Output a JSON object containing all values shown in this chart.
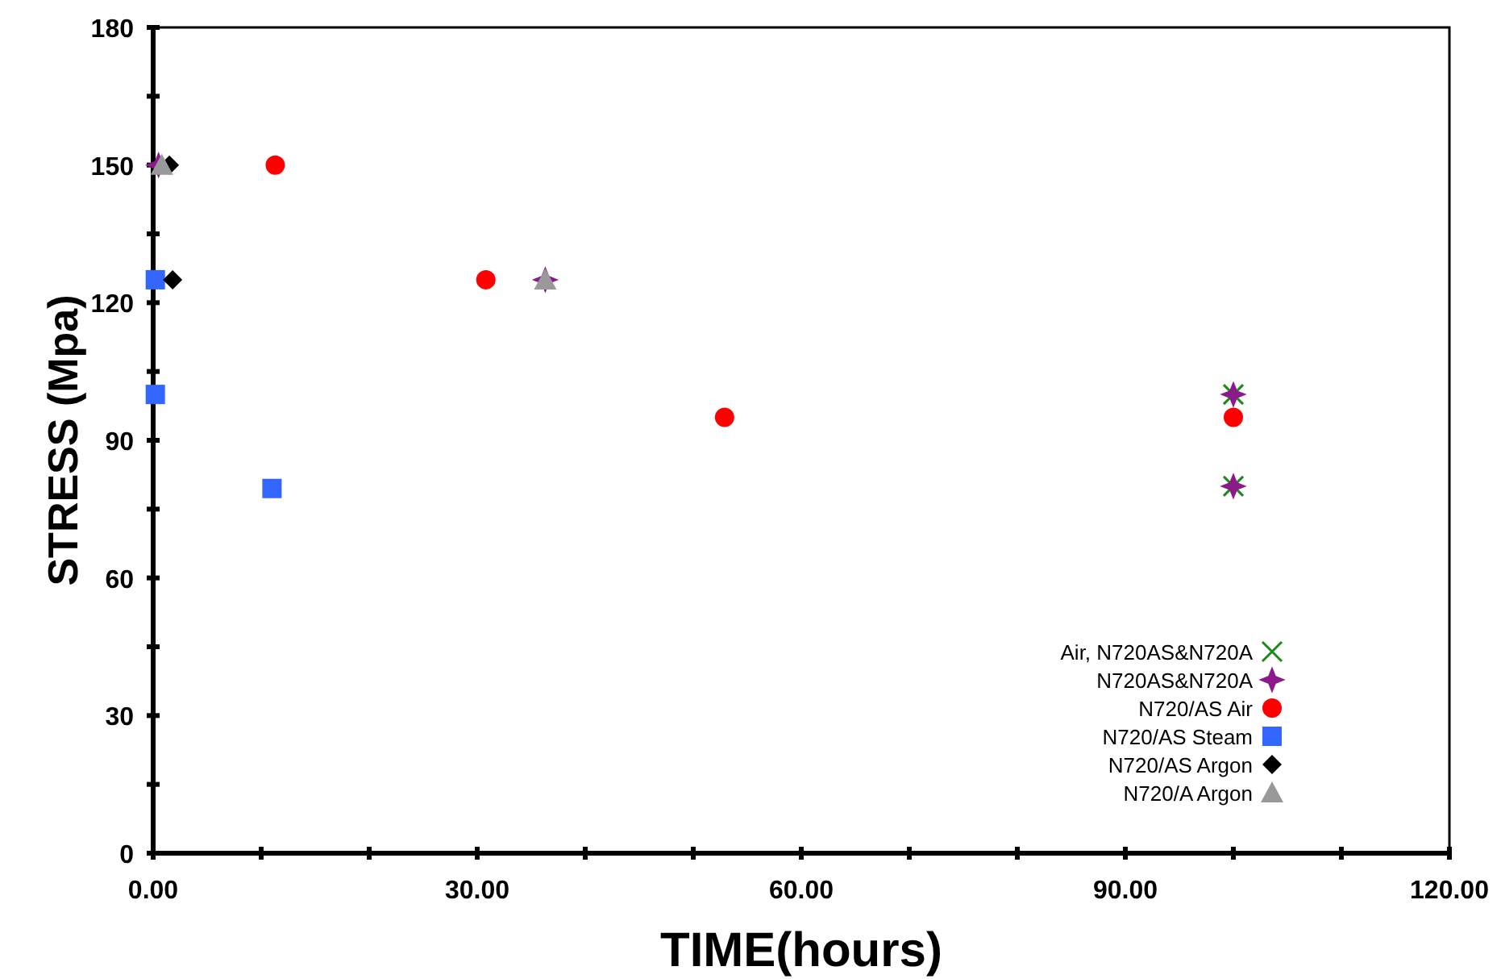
{
  "chart_data": {
    "type": "scatter",
    "xlabel": "TIME(hours)",
    "ylabel": "STRESS (Mpa)",
    "xlim": [
      0,
      120
    ],
    "ylim": [
      0,
      180
    ],
    "xticks": [
      {
        "value": 0,
        "label": "0.00"
      },
      {
        "value": 10,
        "label": null
      },
      {
        "value": 20,
        "label": null
      },
      {
        "value": 30,
        "label": "30.00"
      },
      {
        "value": 40,
        "label": null
      },
      {
        "value": 50,
        "label": null
      },
      {
        "value": 60,
        "label": "60.00"
      },
      {
        "value": 70,
        "label": null
      },
      {
        "value": 80,
        "label": null
      },
      {
        "value": 90,
        "label": "90.00"
      },
      {
        "value": 100,
        "label": null
      },
      {
        "value": 110,
        "label": null
      },
      {
        "value": 120,
        "label": "120.00"
      }
    ],
    "yticks": [
      0,
      {
        "value": 15,
        "label": null
      },
      30,
      {
        "value": 45,
        "label": null
      },
      60,
      {
        "value": 75,
        "label": null
      },
      90,
      {
        "value": 105,
        "label": null
      },
      120,
      {
        "value": 135,
        "label": null
      },
      150,
      {
        "value": 165,
        "label": null
      },
      180
    ],
    "grid": false,
    "legend": "bottom right",
    "series": [
      {
        "name": "Air, N720AS&N720A",
        "color": "#1a8a1a",
        "marker": "cross",
        "x": [
          100,
          100
        ],
        "values": [
          80,
          100
        ]
      },
      {
        "name": "N720AS&N720A",
        "color": "#8b1a8b",
        "marker": "star",
        "x": [
          100,
          100,
          36.3,
          0.5
        ],
        "values": [
          100,
          80,
          125,
          150
        ]
      },
      {
        "name": "N720/AS Air",
        "color": "#ff0000",
        "marker": "circle",
        "x": [
          11.3,
          30.8,
          52.9,
          100
        ],
        "values": [
          150,
          125,
          95,
          95
        ]
      },
      {
        "name": "N720/AS Steam",
        "color": "#3366ff",
        "marker": "square",
        "x": [
          0.2,
          0.2,
          11
        ],
        "values": [
          125,
          100,
          79.5
        ]
      },
      {
        "name": "N720/AS Argon",
        "color": "#000000",
        "marker": "diamond",
        "x": [
          1.5,
          1.8
        ],
        "values": [
          150,
          125
        ]
      },
      {
        "name": "N720/A Argon",
        "color": "#999999",
        "marker": "triangle",
        "x": [
          0.8,
          36.3
        ],
        "values": [
          150,
          125
        ]
      }
    ]
  }
}
